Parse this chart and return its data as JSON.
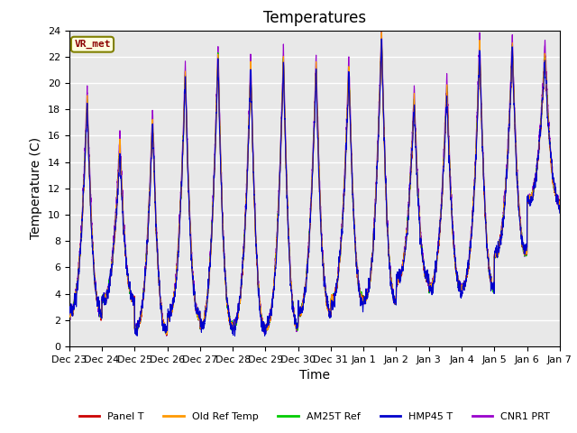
{
  "title": "Temperatures",
  "xlabel": "Time",
  "ylabel": "Temperature (C)",
  "ylim": [
    0,
    24
  ],
  "yticks": [
    0,
    2,
    4,
    6,
    8,
    10,
    12,
    14,
    16,
    18,
    20,
    22,
    24
  ],
  "xtick_labels": [
    "Dec 23",
    "Dec 24",
    "Dec 25",
    "Dec 26",
    "Dec 27",
    "Dec 28",
    "Dec 29",
    "Dec 30",
    "Dec 31",
    "Jan 1",
    "Jan 2",
    "Jan 3",
    "Jan 4",
    "Jan 5",
    "Jan 6",
    "Jan 7"
  ],
  "series_colors": {
    "Panel T": "#cc0000",
    "Old Ref Temp": "#ff9900",
    "AM25T Ref": "#00cc00",
    "HMP45 T": "#0000cc",
    "CNR1 PRT": "#9900cc"
  },
  "legend_labels": [
    "Panel T",
    "Old Ref Temp",
    "AM25T Ref",
    "HMP45 T",
    "CNR1 PRT"
  ],
  "text_annotation": "VR_met",
  "background_color": "#e8e8e8",
  "fig_background": "#ffffff",
  "grid_color": "#ffffff",
  "title_fontsize": 12,
  "axis_fontsize": 10,
  "tick_fontsize": 8,
  "linewidth": 0.8,
  "n_days": 15,
  "pts_per_day": 288,
  "day_peak_maxes": [
    18.5,
    15.0,
    17.0,
    20.5,
    22.0,
    21.0,
    21.5,
    21.0,
    21.0,
    23.5,
    18.5,
    19.5,
    22.5,
    22.5,
    22.0
  ],
  "day_mins": [
    2.5,
    3.5,
    1.2,
    2.2,
    1.5,
    1.5,
    1.5,
    2.5,
    3.5,
    3.5,
    5.0,
    4.5,
    4.5,
    7.0,
    11.0
  ]
}
